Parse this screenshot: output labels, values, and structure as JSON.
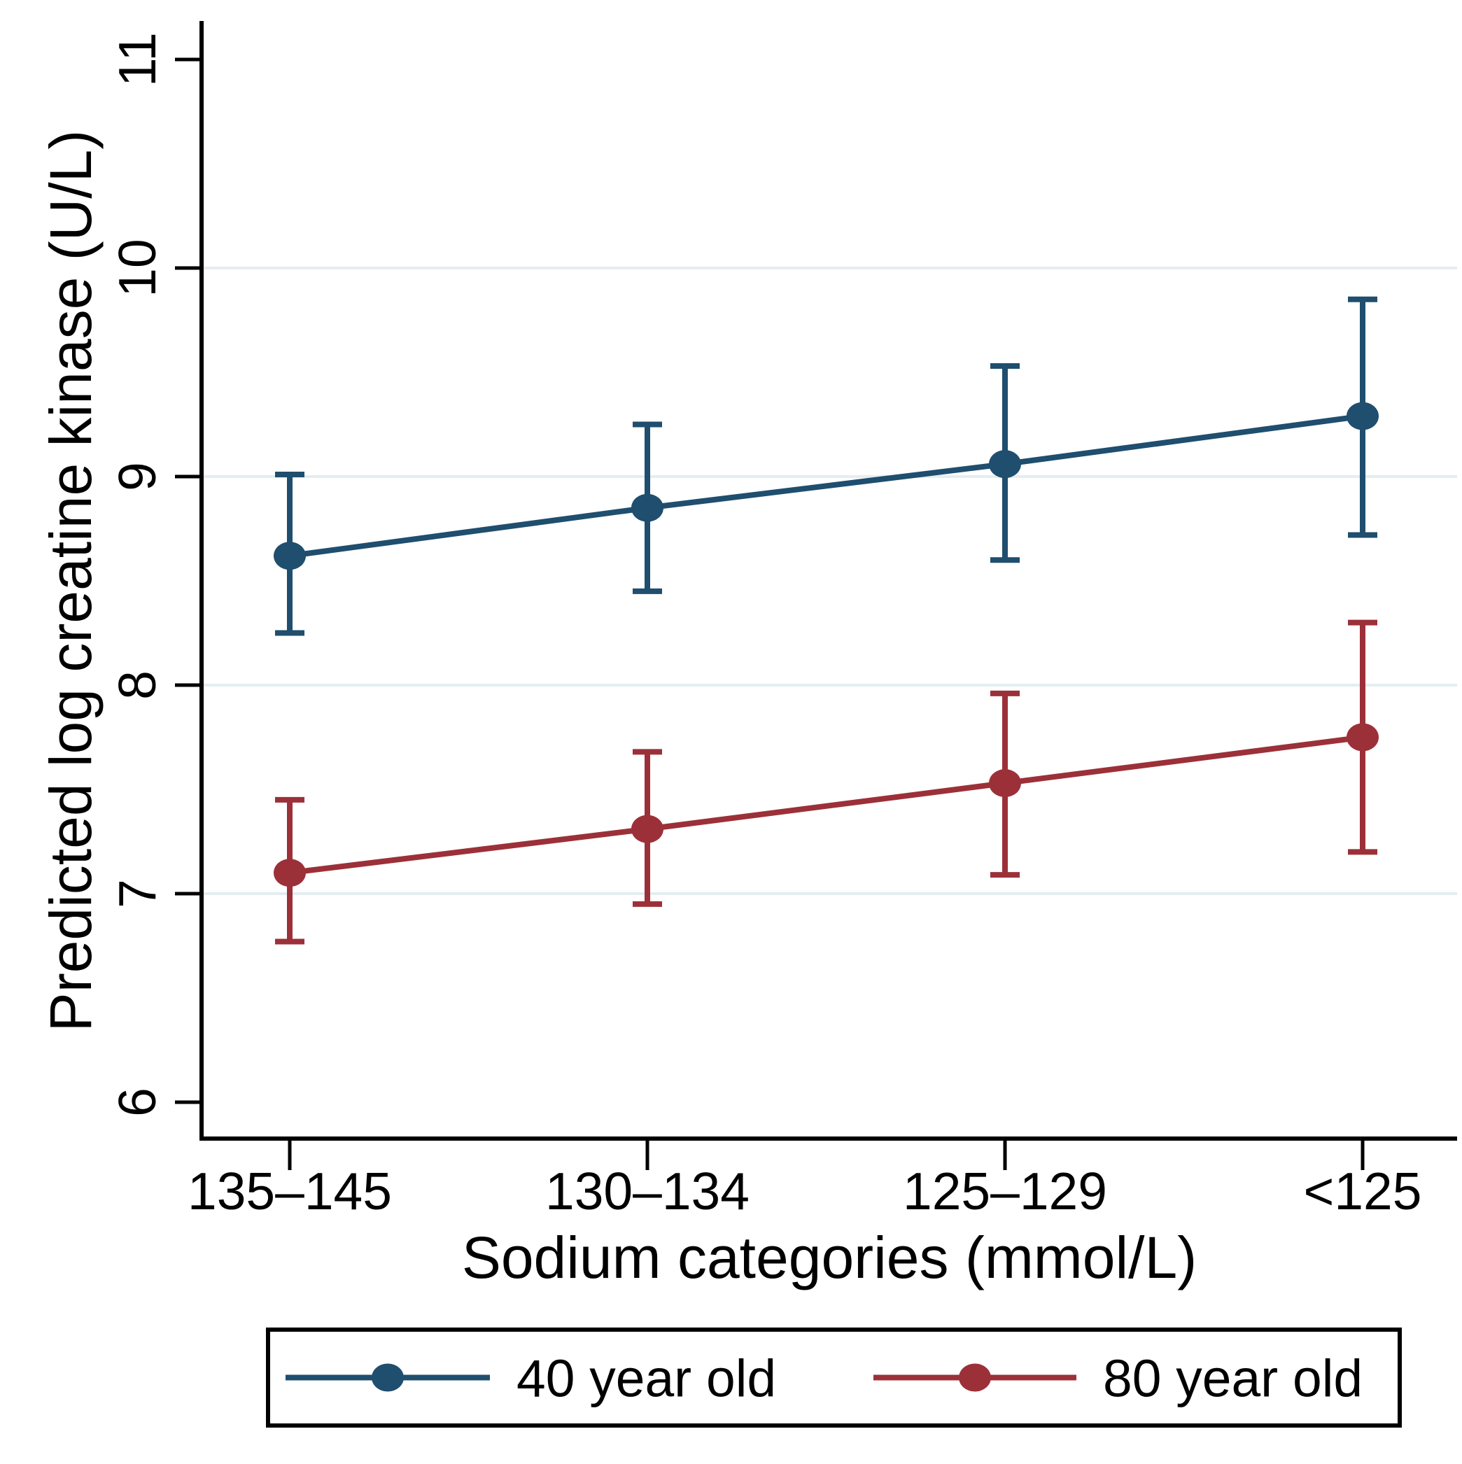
{
  "chart_data": {
    "type": "line",
    "title": "",
    "xlabel": "Sodium categories (mmol/L)",
    "ylabel": "Predicted log creatine kinase (U/L)",
    "categories": [
      "135–145",
      "130–134",
      "125–129",
      "<125"
    ],
    "y_ticks": [
      6,
      7,
      8,
      9,
      10,
      11
    ],
    "gridline_values": [
      7,
      8,
      9,
      10
    ],
    "ylim": [
      5.8,
      11.15
    ],
    "grid": true,
    "legend_position": "bottom",
    "gridline_color": "#e4eef0",
    "axis_color": "#000000",
    "series": [
      {
        "name": "40 year old",
        "color": "#1f4e6e",
        "values": [
          8.62,
          8.85,
          9.06,
          9.29
        ],
        "ci_low": [
          8.25,
          8.45,
          8.6,
          8.72
        ],
        "ci_high": [
          9.01,
          9.25,
          9.53,
          9.85
        ]
      },
      {
        "name": "80 year old",
        "color": "#9c3039",
        "values": [
          7.1,
          7.31,
          7.53,
          7.75
        ],
        "ci_low": [
          6.77,
          6.95,
          7.09,
          7.2
        ],
        "ci_high": [
          7.45,
          7.68,
          7.96,
          8.3
        ]
      }
    ]
  }
}
